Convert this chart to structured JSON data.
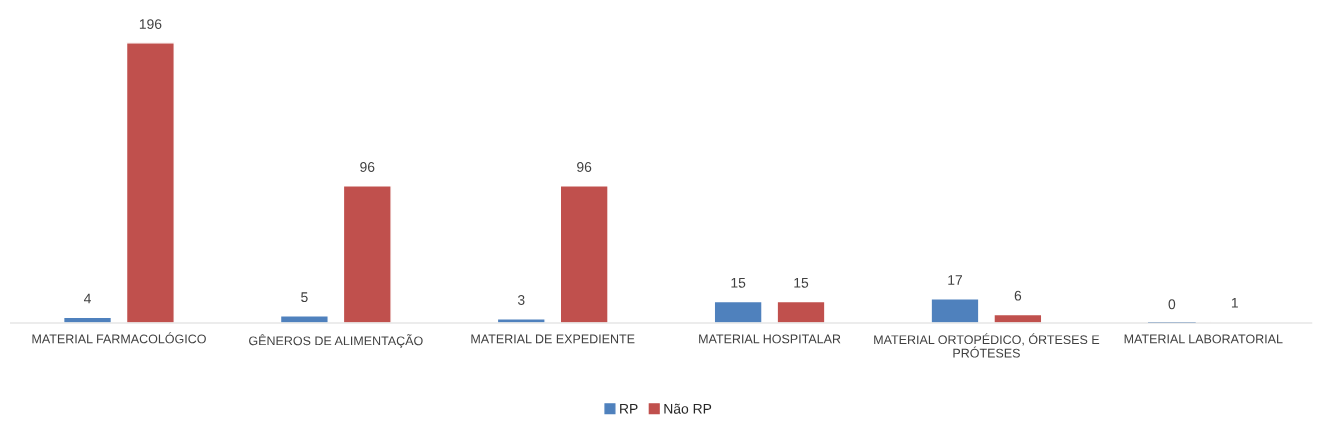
{
  "chart_data": {
    "type": "bar",
    "categories": [
      "MATERIAL FARMACOLÓGICO",
      "GÊNEROS DE ALIMENTAÇÃO",
      "MATERIAL DE EXPEDIENTE",
      "MATERIAL HOSPITALAR",
      "MATERIAL ORTOPÉDICO, ÓRTESES E PRÓTESES",
      "MATERIAL LABORATORIAL"
    ],
    "series": [
      {
        "name": "RP",
        "color": "#4f81bd",
        "values": [
          4,
          5,
          3,
          15,
          17,
          0
        ]
      },
      {
        "name": "Não RP",
        "color": "#c0504d",
        "values": [
          196,
          96,
          96,
          15,
          6,
          1
        ]
      }
    ],
    "data_labels": true,
    "legend": "bottom",
    "grid": false
  }
}
